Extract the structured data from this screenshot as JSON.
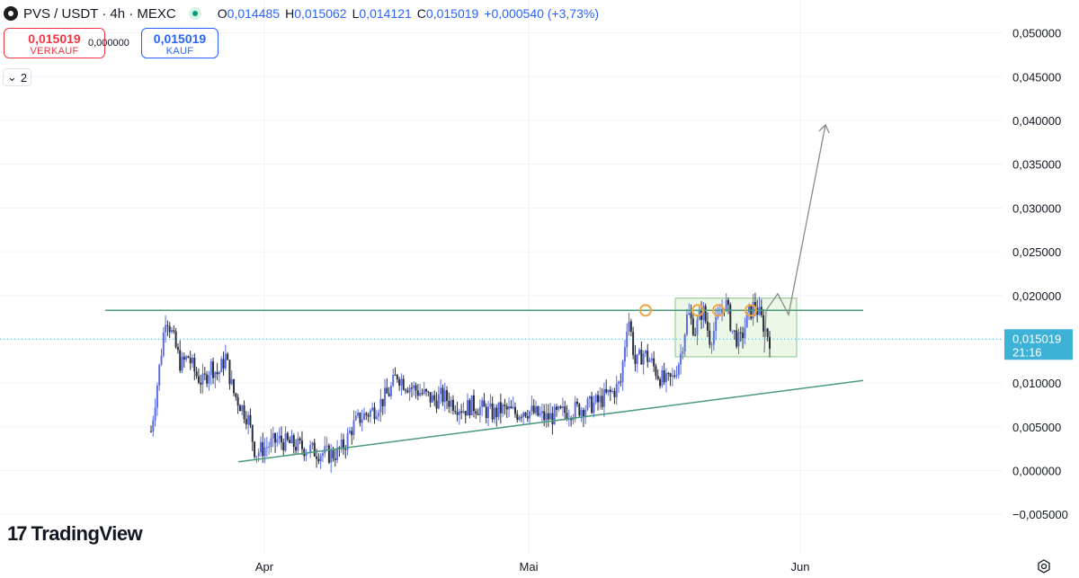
{
  "header": {
    "symbol": "PVS / USDT · 4h · MEXC",
    "o_label": "O",
    "o_value": "0,014485",
    "h_label": "H",
    "h_value": "0,015062",
    "l_label": "L",
    "l_value": "0,014121",
    "c_label": "C",
    "c_value": "0,015019",
    "change": "+0,000540 (+3,73%)"
  },
  "trade": {
    "sell_price": "0,015019",
    "sell_label": "VERKAUF",
    "spread": "0,000000",
    "buy_price": "0,015019",
    "buy_label": "KAUF"
  },
  "indicators": {
    "count": "2"
  },
  "branding": {
    "name": "TradingView"
  },
  "colors": {
    "up": "#5b6ee8",
    "down": "#2a2e39",
    "accent": "#2962ff",
    "line": "#4c9a7c",
    "price_tag": "#3db2d6",
    "circle": "#f2a541",
    "box_fill": "#e6f4df",
    "box_stroke": "#8ac48a",
    "arrow": "#8a8a8a"
  },
  "chart_data": {
    "type": "candlestick",
    "ylim": [
      -0.0058,
      0.0515
    ],
    "y_ticks": [
      "0,050000",
      "0,045000",
      "0,040000",
      "0,035000",
      "0,030000",
      "0,025000",
      "0,020000",
      "0,015000",
      "0,010000",
      "0,005000",
      "0,000000",
      "−0,005000"
    ],
    "y_tick_values": [
      0.05,
      0.045,
      0.04,
      0.035,
      0.03,
      0.025,
      0.02,
      0.015,
      0.01,
      0.005,
      0.0,
      -0.005
    ],
    "x_labels": [
      "Apr",
      "Mai",
      "Jun"
    ],
    "current_price_label": "0,015019",
    "countdown_label": "21:16",
    "close_series": [
      0.0045,
      0.011,
      0.018,
      0.015,
      0.012,
      0.013,
      0.011,
      0.01,
      0.012,
      0.011,
      0.013,
      0.009,
      0.0075,
      0.006,
      0.002,
      0.0025,
      0.003,
      0.0035,
      0.0032,
      0.003,
      0.0027,
      0.0025,
      0.0022,
      0.002,
      0.0018,
      0.002,
      0.003,
      0.005,
      0.006,
      0.0065,
      0.007,
      0.008,
      0.009,
      0.011,
      0.01,
      0.0095,
      0.009,
      0.0085,
      0.008,
      0.0085,
      0.008,
      0.0075,
      0.007,
      0.0075,
      0.0072,
      0.0068,
      0.0065,
      0.007,
      0.0068,
      0.0065,
      0.007,
      0.0067,
      0.0063,
      0.006,
      0.0062,
      0.0065,
      0.0068,
      0.007,
      0.0072,
      0.0075,
      0.0078,
      0.0085,
      0.009,
      0.01,
      0.018,
      0.012,
      0.0135,
      0.0125,
      0.011,
      0.01,
      0.0105,
      0.013,
      0.018,
      0.016,
      0.0185,
      0.015,
      0.017,
      0.0195,
      0.016,
      0.0145,
      0.0175,
      0.019,
      0.017,
      0.015
    ],
    "resistance": 0.0183,
    "support_from": 0.001,
    "support_to": 0.0103,
    "box_range": [
      0.013,
      0.0197
    ],
    "projection": [
      0.0183,
      0.0202,
      0.0178,
      0.0395
    ]
  }
}
